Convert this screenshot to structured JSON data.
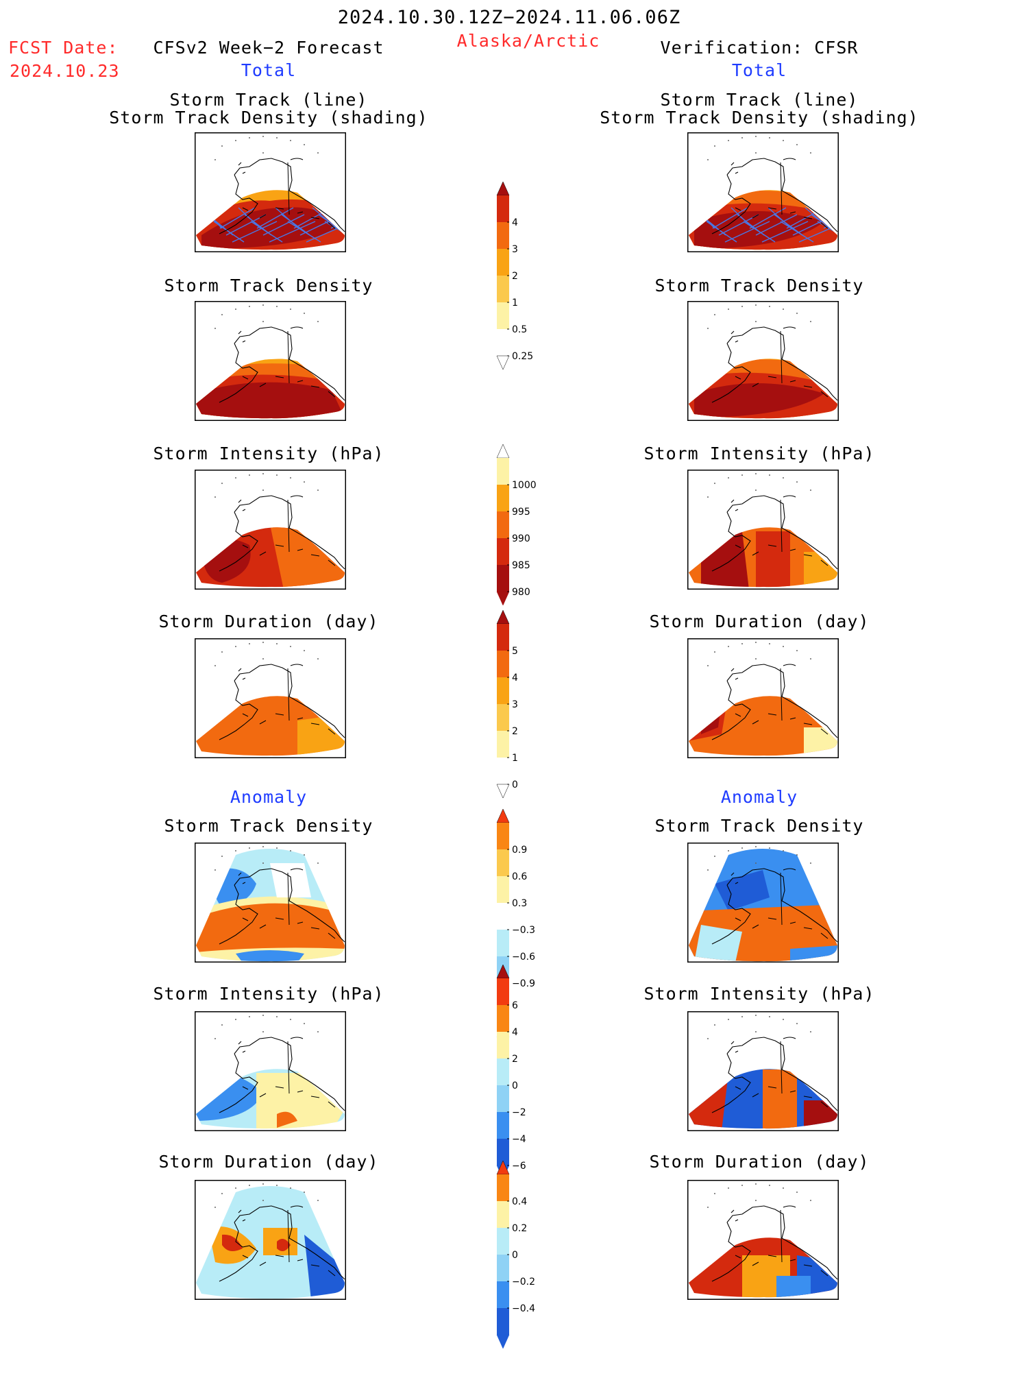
{
  "header": {
    "date_range": "2024.10.30.12Z−2024.11.06.06Z",
    "region": "Alaska/Arctic",
    "fcst_label": "FCST Date:",
    "fcst_date": "2024.10.23",
    "left_title": "CFSv2 Week−2 Forecast",
    "right_title": "Verification: CFSR",
    "left_subtitle": "Total",
    "right_subtitle": "Total"
  },
  "sections": {
    "left_anomaly": "Anomaly",
    "right_anomaly": "Anomaly"
  },
  "panels": {
    "left": [
      {
        "title1": "Storm Track (line)",
        "title2": "Storm Track Density (shading)",
        "field": "track_line_density",
        "palette": "total"
      },
      {
        "title1": "Storm Track Density",
        "field": "track_density",
        "palette": "total"
      },
      {
        "title1": "Storm Intensity (hPa)",
        "field": "intensity",
        "palette": "total"
      },
      {
        "title1": "Storm Duration (day)",
        "field": "duration",
        "palette": "total"
      },
      {
        "title1": "Storm Track Density",
        "field": "track_density_anom",
        "palette": "anomaly"
      },
      {
        "title1": "Storm Intensity (hPa)",
        "field": "intensity_anom",
        "palette": "anomaly"
      },
      {
        "title1": "Storm Duration (day)",
        "field": "duration_anom",
        "palette": "anomaly"
      }
    ],
    "right": [
      {
        "title1": "Storm Track (line)",
        "title2": "Storm Track Density (shading)",
        "field": "track_line_density",
        "palette": "total"
      },
      {
        "title1": "Storm Track Density",
        "field": "track_density",
        "palette": "total"
      },
      {
        "title1": "Storm Intensity (hPa)",
        "field": "intensity",
        "palette": "total"
      },
      {
        "title1": "Storm Duration (day)",
        "field": "duration",
        "palette": "total"
      },
      {
        "title1": "Storm Track Density",
        "field": "track_density_anom",
        "palette": "anomaly"
      },
      {
        "title1": "Storm Intensity (hPa)",
        "field": "intensity_anom",
        "palette": "anomaly"
      },
      {
        "title1": "Storm Duration (day)",
        "field": "duration_anom",
        "palette": "anomaly"
      }
    ]
  },
  "colorbars": [
    {
      "name": "track-density-colorbar",
      "labels": [
        "4",
        "3",
        "2",
        "1",
        "0.5",
        "0.25"
      ],
      "colors": [
        "#a50f0f",
        "#d42a0e",
        "#f26a10",
        "#f9a314",
        "#fbc94d",
        "#fdf2a6",
        "#ffffff"
      ]
    },
    {
      "name": "intensity-colorbar",
      "labels": [
        "1000",
        "995",
        "990",
        "985",
        "980"
      ],
      "colors": [
        "#ffffff",
        "#fdf2a6",
        "#f9a314",
        "#f26a10",
        "#d42a0e",
        "#a50f0f"
      ]
    },
    {
      "name": "duration-colorbar",
      "labels": [
        "5",
        "4",
        "3",
        "2",
        "1",
        "0"
      ],
      "colors": [
        "#a50f0f",
        "#d42a0e",
        "#f26a10",
        "#f9a314",
        "#fbc94d",
        "#fdf2a6",
        "#ffffff"
      ]
    },
    {
      "name": "density-anomaly-colorbar",
      "labels": [
        "0.9",
        "0.6",
        "0.3",
        "−0.3",
        "−0.6",
        "−0.9"
      ],
      "colors": [
        "#f23b10",
        "#f98614",
        "#fbc94d",
        "#fdf2a6",
        "#ffffff",
        "#b8ecf7",
        "#8fd2f5",
        "#3a8ff0",
        "#1f5cd6"
      ]
    },
    {
      "name": "intensity-anomaly-colorbar",
      "labels": [
        "6",
        "4",
        "2",
        "0",
        "−2",
        "−4",
        "−6"
      ],
      "colors": [
        "#a50f0f",
        "#f23b10",
        "#f98614",
        "#fdf2a6",
        "#b8ecf7",
        "#8fd2f5",
        "#3a8ff0",
        "#1f5cd6"
      ]
    },
    {
      "name": "duration-anomaly-colorbar",
      "labels": [
        "0.4",
        "0.2",
        "0",
        "−0.2",
        "−0.4"
      ],
      "colors": [
        "#f23b10",
        "#f98614",
        "#fdf2a6",
        "#b8ecf7",
        "#8fd2f5",
        "#3a8ff0",
        "#1f5cd6"
      ]
    }
  ],
  "palette_colors": {
    "dark_red": "#a50f0f",
    "red": "#d42a0e",
    "orange": "#f26a10",
    "light_orange": "#f9a314",
    "pale": "#fdf2a6",
    "light_blue": "#b8ecf7",
    "mid_blue": "#3a8ff0",
    "dark_blue": "#1f5cd6",
    "track_line": "#4a78e6",
    "header_red": "#ff2a2a",
    "header_blue": "#1f3cff"
  }
}
